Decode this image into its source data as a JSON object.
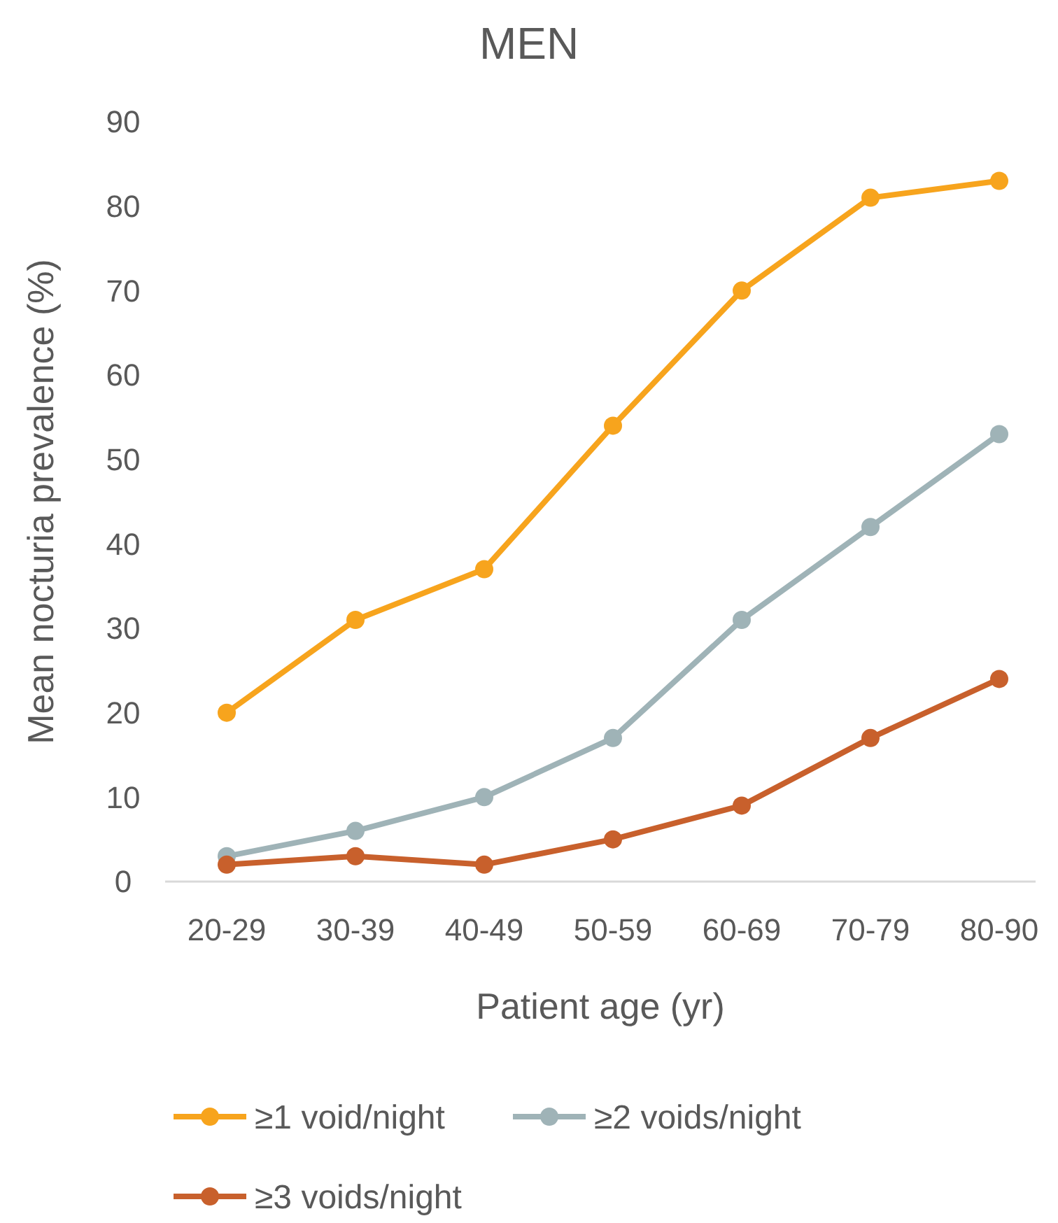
{
  "chart_data": {
    "type": "line",
    "title": "MEN",
    "xlabel": "Patient age (yr)",
    "ylabel": "Mean nocturia prevalence (%)",
    "categories": [
      "20-29",
      "30-39",
      "40-49",
      "50-59",
      "60-69",
      "70-79",
      "80-90"
    ],
    "series": [
      {
        "name": "≥1 void/night",
        "color": "#f7a41d",
        "values": [
          20,
          31,
          37,
          54,
          70,
          81,
          83
        ]
      },
      {
        "name": "≥2 voids/night",
        "color": "#9fb3b7",
        "values": [
          3,
          6,
          10,
          17,
          31,
          42,
          53
        ]
      },
      {
        "name": "≥3 voids/night",
        "color": "#c8602c",
        "values": [
          2,
          3,
          2,
          5,
          9,
          17,
          24
        ]
      }
    ],
    "ylim": [
      0,
      90
    ],
    "yticks": [
      0,
      10,
      20,
      30,
      40,
      50,
      60,
      70,
      80,
      90
    ],
    "legend": "bottom",
    "marker": "circle",
    "line_style": "solid"
  }
}
